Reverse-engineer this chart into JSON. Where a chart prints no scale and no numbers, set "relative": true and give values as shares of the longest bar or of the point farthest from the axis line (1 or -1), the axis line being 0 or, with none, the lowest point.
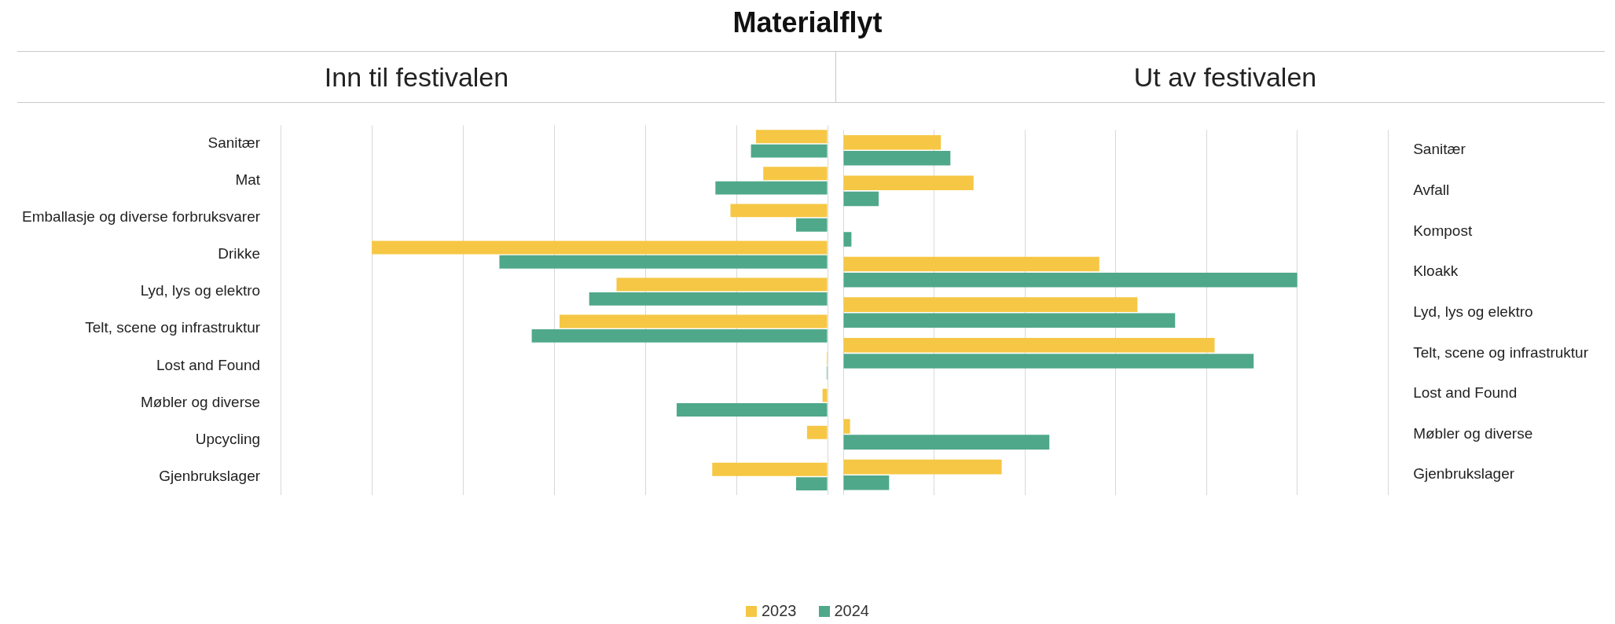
{
  "chart_data": [
    {
      "type": "bar",
      "title": "Materialflyt",
      "subtitle": "Inn til festivalen",
      "orientation": "horizontal",
      "relative": true,
      "grid": true,
      "legend": "bottom",
      "categories": [
        "Sanitær",
        "Mat",
        "Emballasje og diverse forbruksvarer",
        "Drikke",
        "Lyd, lys og elektro",
        "Telt, scene og infrastruktur",
        "Lost and Found",
        "Møbler og diverse",
        "Upcycling",
        "Gjenbrukslager"
      ],
      "series": [
        {
          "name": "2023",
          "color": "#f6c744",
          "values": [
            -0.157,
            -0.141,
            -0.213,
            -1,
            -0.463,
            -0.588,
            -0.002,
            -0.011,
            -0.045,
            -0.253
          ]
        },
        {
          "name": "2024",
          "color": "#4fa88a",
          "values": [
            -0.168,
            -0.246,
            -0.069,
            -0.72,
            -0.523,
            -0.649,
            -0.002,
            -0.331,
            0,
            -0.069
          ]
        }
      ]
    },
    {
      "type": "bar",
      "subtitle": "Ut av festivalen",
      "orientation": "horizontal",
      "relative": true,
      "grid": true,
      "legend": "bottom",
      "categories": [
        "Sanitær",
        "Avfall",
        "Kompost",
        "Kloakk",
        "Lyd, lys og elektro",
        "Telt, scene og infrastruktur",
        "Lost and Found",
        "Møbler og diverse",
        "Gjenbrukslager"
      ],
      "series": [
        {
          "name": "2023",
          "color": "#f6c744",
          "values": [
            0.215,
            0.287,
            0,
            0.564,
            0.648,
            0.818,
            0,
            0.015,
            0.349
          ]
        },
        {
          "name": "2024",
          "color": "#4fa88a",
          "values": [
            0.236,
            0.078,
            0.018,
            1,
            0.731,
            0.904,
            0,
            0.454,
            0.101
          ]
        }
      ]
    }
  ]
}
